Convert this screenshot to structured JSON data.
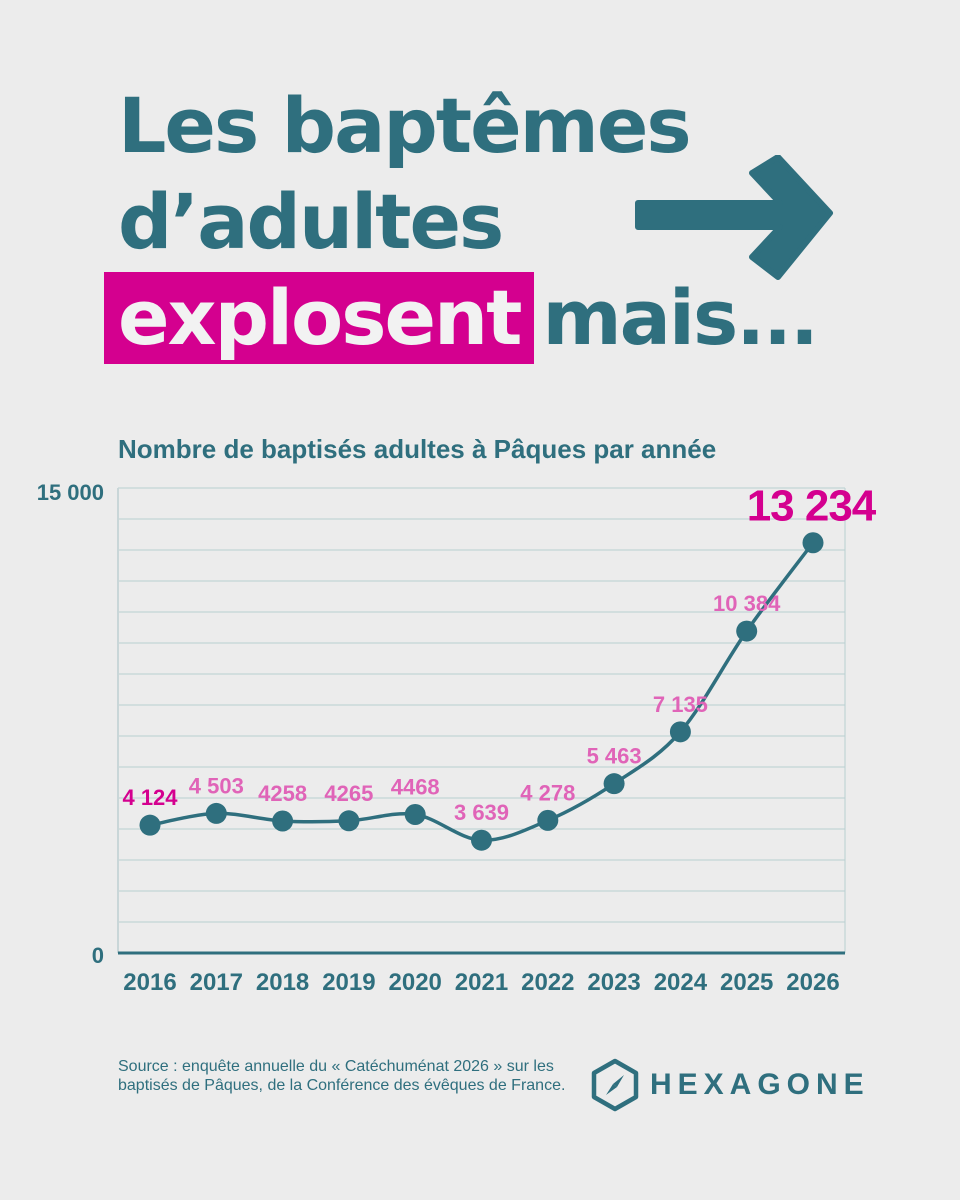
{
  "headline": {
    "line1_a": "Les ",
    "line1_b": "baptêmes",
    "line2": "d’adultes",
    "line3_highlight": "explosent",
    "line3_rest": "mais..."
  },
  "subtitle": "Nombre de baptisés adultes à Pâques par année",
  "colors": {
    "background": "#ececec",
    "primary": "#2f6f7e",
    "accent": "#d4008f",
    "label_pink": "#e064b8",
    "grid": "#b9cfd1"
  },
  "chart_data": {
    "type": "line",
    "x": [
      "2016",
      "2017",
      "2018",
      "2019",
      "2020",
      "2021",
      "2022",
      "2023",
      "2024",
      "2025",
      "2026"
    ],
    "values": [
      4124,
      4503,
      4258,
      4265,
      4468,
      3639,
      4278,
      5463,
      7135,
      10384,
      13234
    ],
    "data_labels": [
      "4 124",
      "4 503",
      "4258",
      "4265",
      "4468",
      "3 639",
      "4 278",
      "5 463",
      "7 135",
      "10 384",
      "13 234"
    ],
    "ylim": [
      0,
      15000
    ],
    "y_tick_labels": [
      "0",
      "15 000"
    ],
    "grid": true,
    "title": "Nombre de baptisés adultes à Pâques par année"
  },
  "source": "Source : enquête annuelle du « Catéchuménat 2026 » sur les baptisés de Pâques, de la Conférence des évêques de France.",
  "logo": {
    "name": "HEXAGONE",
    "icon": "compass-hexagon-icon"
  },
  "arrow_icon": "arrow-right-icon"
}
